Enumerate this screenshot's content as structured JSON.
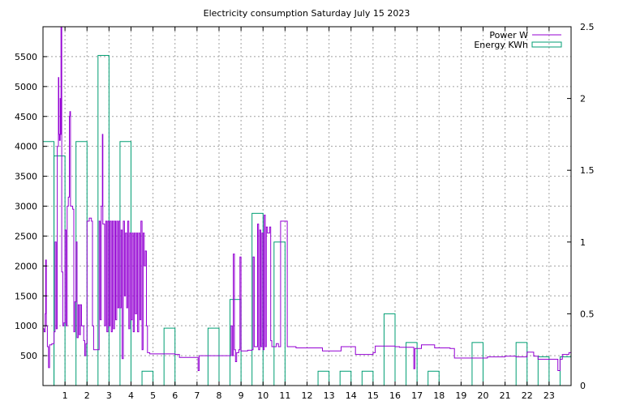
{
  "chart_data": {
    "type": "line",
    "title": "Electricity consumption Saturday July 15 2023",
    "x": {
      "min": 0,
      "max": 24,
      "ticks": [
        1,
        2,
        3,
        4,
        5,
        6,
        7,
        8,
        9,
        10,
        11,
        12,
        13,
        14,
        15,
        16,
        17,
        18,
        19,
        20,
        21,
        22,
        23
      ]
    },
    "y_left": {
      "min": 0,
      "max": 6000,
      "ticks": [
        500,
        1000,
        1500,
        2000,
        2500,
        3000,
        3500,
        4000,
        4500,
        5000,
        5500
      ]
    },
    "y_right": {
      "min": 0,
      "max": 2.5,
      "ticks": [
        0,
        0.5,
        1,
        1.5,
        2,
        2.5
      ]
    },
    "grid": true,
    "legend_position": "top-right",
    "series": [
      {
        "name": "Power W",
        "color": "#9400d3",
        "axis": "left",
        "style": "steps",
        "points": [
          [
            0.0,
            950
          ],
          [
            0.05,
            900
          ],
          [
            0.1,
            1200
          ],
          [
            0.12,
            2100
          ],
          [
            0.15,
            1000
          ],
          [
            0.2,
            650
          ],
          [
            0.25,
            300
          ],
          [
            0.3,
            680
          ],
          [
            0.4,
            700
          ],
          [
            0.5,
            900
          ],
          [
            0.55,
            2400
          ],
          [
            0.6,
            950
          ],
          [
            0.65,
            4000
          ],
          [
            0.7,
            5150
          ],
          [
            0.72,
            4200
          ],
          [
            0.75,
            4100
          ],
          [
            0.78,
            4800
          ],
          [
            0.8,
            4200
          ],
          [
            0.82,
            6000
          ],
          [
            0.85,
            1900
          ],
          [
            0.9,
            1000
          ],
          [
            0.95,
            1050
          ],
          [
            1.0,
            2600
          ],
          [
            1.05,
            1000
          ],
          [
            1.1,
            3000
          ],
          [
            1.15,
            3150
          ],
          [
            1.2,
            4500
          ],
          [
            1.22,
            4580
          ],
          [
            1.25,
            3000
          ],
          [
            1.35,
            2950
          ],
          [
            1.4,
            900
          ],
          [
            1.45,
            1400
          ],
          [
            1.5,
            2400
          ],
          [
            1.55,
            800
          ],
          [
            1.6,
            1350
          ],
          [
            1.65,
            850
          ],
          [
            1.7,
            1350
          ],
          [
            1.75,
            1000
          ],
          [
            1.8,
            1000
          ],
          [
            1.85,
            750
          ],
          [
            1.9,
            500
          ],
          [
            1.95,
            700
          ],
          [
            2.0,
            2750
          ],
          [
            2.1,
            2800
          ],
          [
            2.2,
            2750
          ],
          [
            2.25,
            1000
          ],
          [
            2.3,
            600
          ],
          [
            2.4,
            600
          ],
          [
            2.5,
            600
          ],
          [
            2.55,
            2750
          ],
          [
            2.6,
            1100
          ],
          [
            2.65,
            3000
          ],
          [
            2.7,
            4200
          ],
          [
            2.72,
            2700
          ],
          [
            2.8,
            1000
          ],
          [
            2.85,
            2750
          ],
          [
            2.9,
            900
          ],
          [
            2.95,
            2750
          ],
          [
            3.0,
            1000
          ],
          [
            3.05,
            2750
          ],
          [
            3.1,
            900
          ],
          [
            3.15,
            2750
          ],
          [
            3.2,
            950
          ],
          [
            3.25,
            2750
          ],
          [
            3.3,
            1100
          ],
          [
            3.35,
            2750
          ],
          [
            3.4,
            1300
          ],
          [
            3.45,
            2750
          ],
          [
            3.5,
            1300
          ],
          [
            3.55,
            2600
          ],
          [
            3.6,
            450
          ],
          [
            3.65,
            2750
          ],
          [
            3.7,
            1500
          ],
          [
            3.75,
            2550
          ],
          [
            3.8,
            1300
          ],
          [
            3.85,
            2750
          ],
          [
            3.9,
            950
          ],
          [
            3.95,
            2550
          ],
          [
            4.0,
            1100
          ],
          [
            4.05,
            2550
          ],
          [
            4.1,
            900
          ],
          [
            4.15,
            2550
          ],
          [
            4.2,
            1200
          ],
          [
            4.25,
            2550
          ],
          [
            4.3,
            900
          ],
          [
            4.35,
            2550
          ],
          [
            4.4,
            1100
          ],
          [
            4.45,
            2750
          ],
          [
            4.5,
            600
          ],
          [
            4.55,
            2550
          ],
          [
            4.6,
            2000
          ],
          [
            4.65,
            2250
          ],
          [
            4.7,
            1000
          ],
          [
            4.75,
            550
          ],
          [
            4.85,
            530
          ],
          [
            5.0,
            530
          ],
          [
            5.5,
            530
          ],
          [
            6.0,
            520
          ],
          [
            6.2,
            470
          ],
          [
            7.0,
            470
          ],
          [
            7.05,
            250
          ],
          [
            7.1,
            500
          ],
          [
            8.0,
            500
          ],
          [
            8.5,
            500
          ],
          [
            8.55,
            1000
          ],
          [
            8.6,
            500
          ],
          [
            8.65,
            2200
          ],
          [
            8.7,
            600
          ],
          [
            8.75,
            400
          ],
          [
            8.8,
            550
          ],
          [
            8.85,
            550
          ],
          [
            8.9,
            600
          ],
          [
            8.95,
            2150
          ],
          [
            9.0,
            580
          ],
          [
            9.2,
            580
          ],
          [
            9.3,
            590
          ],
          [
            9.5,
            600
          ],
          [
            9.55,
            2150
          ],
          [
            9.6,
            650
          ],
          [
            9.7,
            650
          ],
          [
            9.75,
            2700
          ],
          [
            9.8,
            600
          ],
          [
            9.85,
            2600
          ],
          [
            9.9,
            650
          ],
          [
            9.95,
            2550
          ],
          [
            10.0,
            600
          ],
          [
            10.05,
            2850
          ],
          [
            10.1,
            650
          ],
          [
            10.15,
            2650
          ],
          [
            10.2,
            2550
          ],
          [
            10.3,
            2650
          ],
          [
            10.35,
            750
          ],
          [
            10.4,
            650
          ],
          [
            10.6,
            700
          ],
          [
            10.7,
            650
          ],
          [
            10.8,
            2750
          ],
          [
            11.0,
            2750
          ],
          [
            11.1,
            650
          ],
          [
            11.5,
            630
          ],
          [
            12.0,
            630
          ],
          [
            12.5,
            630
          ],
          [
            12.7,
            580
          ],
          [
            13.5,
            580
          ],
          [
            13.55,
            650
          ],
          [
            14.0,
            650
          ],
          [
            14.2,
            520
          ],
          [
            15.0,
            550
          ],
          [
            15.1,
            660
          ],
          [
            16.0,
            650
          ],
          [
            16.2,
            640
          ],
          [
            16.8,
            640
          ],
          [
            16.85,
            280
          ],
          [
            16.9,
            620
          ],
          [
            17.2,
            680
          ],
          [
            17.8,
            630
          ],
          [
            18.5,
            620
          ],
          [
            18.7,
            460
          ],
          [
            19.0,
            460
          ],
          [
            20.0,
            460
          ],
          [
            20.2,
            480
          ],
          [
            21.0,
            490
          ],
          [
            21.5,
            480
          ],
          [
            21.9,
            480
          ],
          [
            22.0,
            560
          ],
          [
            22.3,
            490
          ],
          [
            22.5,
            440
          ],
          [
            23.0,
            440
          ],
          [
            23.4,
            250
          ],
          [
            23.5,
            440
          ],
          [
            23.6,
            520
          ],
          [
            23.9,
            550
          ],
          [
            24.0,
            550
          ]
        ]
      },
      {
        "name": "Energy KWh",
        "color": "#009e73",
        "axis": "right",
        "style": "boxes",
        "bars": [
          {
            "x": 0.0,
            "v": 1.7
          },
          {
            "x": 0.5,
            "v": 1.6
          },
          {
            "x": 1.5,
            "v": 1.7
          },
          {
            "x": 2.5,
            "v": 2.3
          },
          {
            "x": 3.5,
            "v": 1.7
          },
          {
            "x": 4.5,
            "v": 0.1
          },
          {
            "x": 5.5,
            "v": 0.4
          },
          {
            "x": 7.5,
            "v": 0.4
          },
          {
            "x": 8.5,
            "v": 0.6
          },
          {
            "x": 9.5,
            "v": 1.2
          },
          {
            "x": 10.5,
            "v": 1.0
          },
          {
            "x": 12.5,
            "v": 0.1
          },
          {
            "x": 13.5,
            "v": 0.1
          },
          {
            "x": 14.5,
            "v": 0.1
          },
          {
            "x": 15.5,
            "v": 0.5
          },
          {
            "x": 16.5,
            "v": 0.3
          },
          {
            "x": 17.5,
            "v": 0.1
          },
          {
            "x": 19.5,
            "v": 0.3
          },
          {
            "x": 21.5,
            "v": 0.3
          },
          {
            "x": 22.5,
            "v": 0.2
          },
          {
            "x": 23.5,
            "v": 0.2
          }
        ]
      }
    ]
  }
}
